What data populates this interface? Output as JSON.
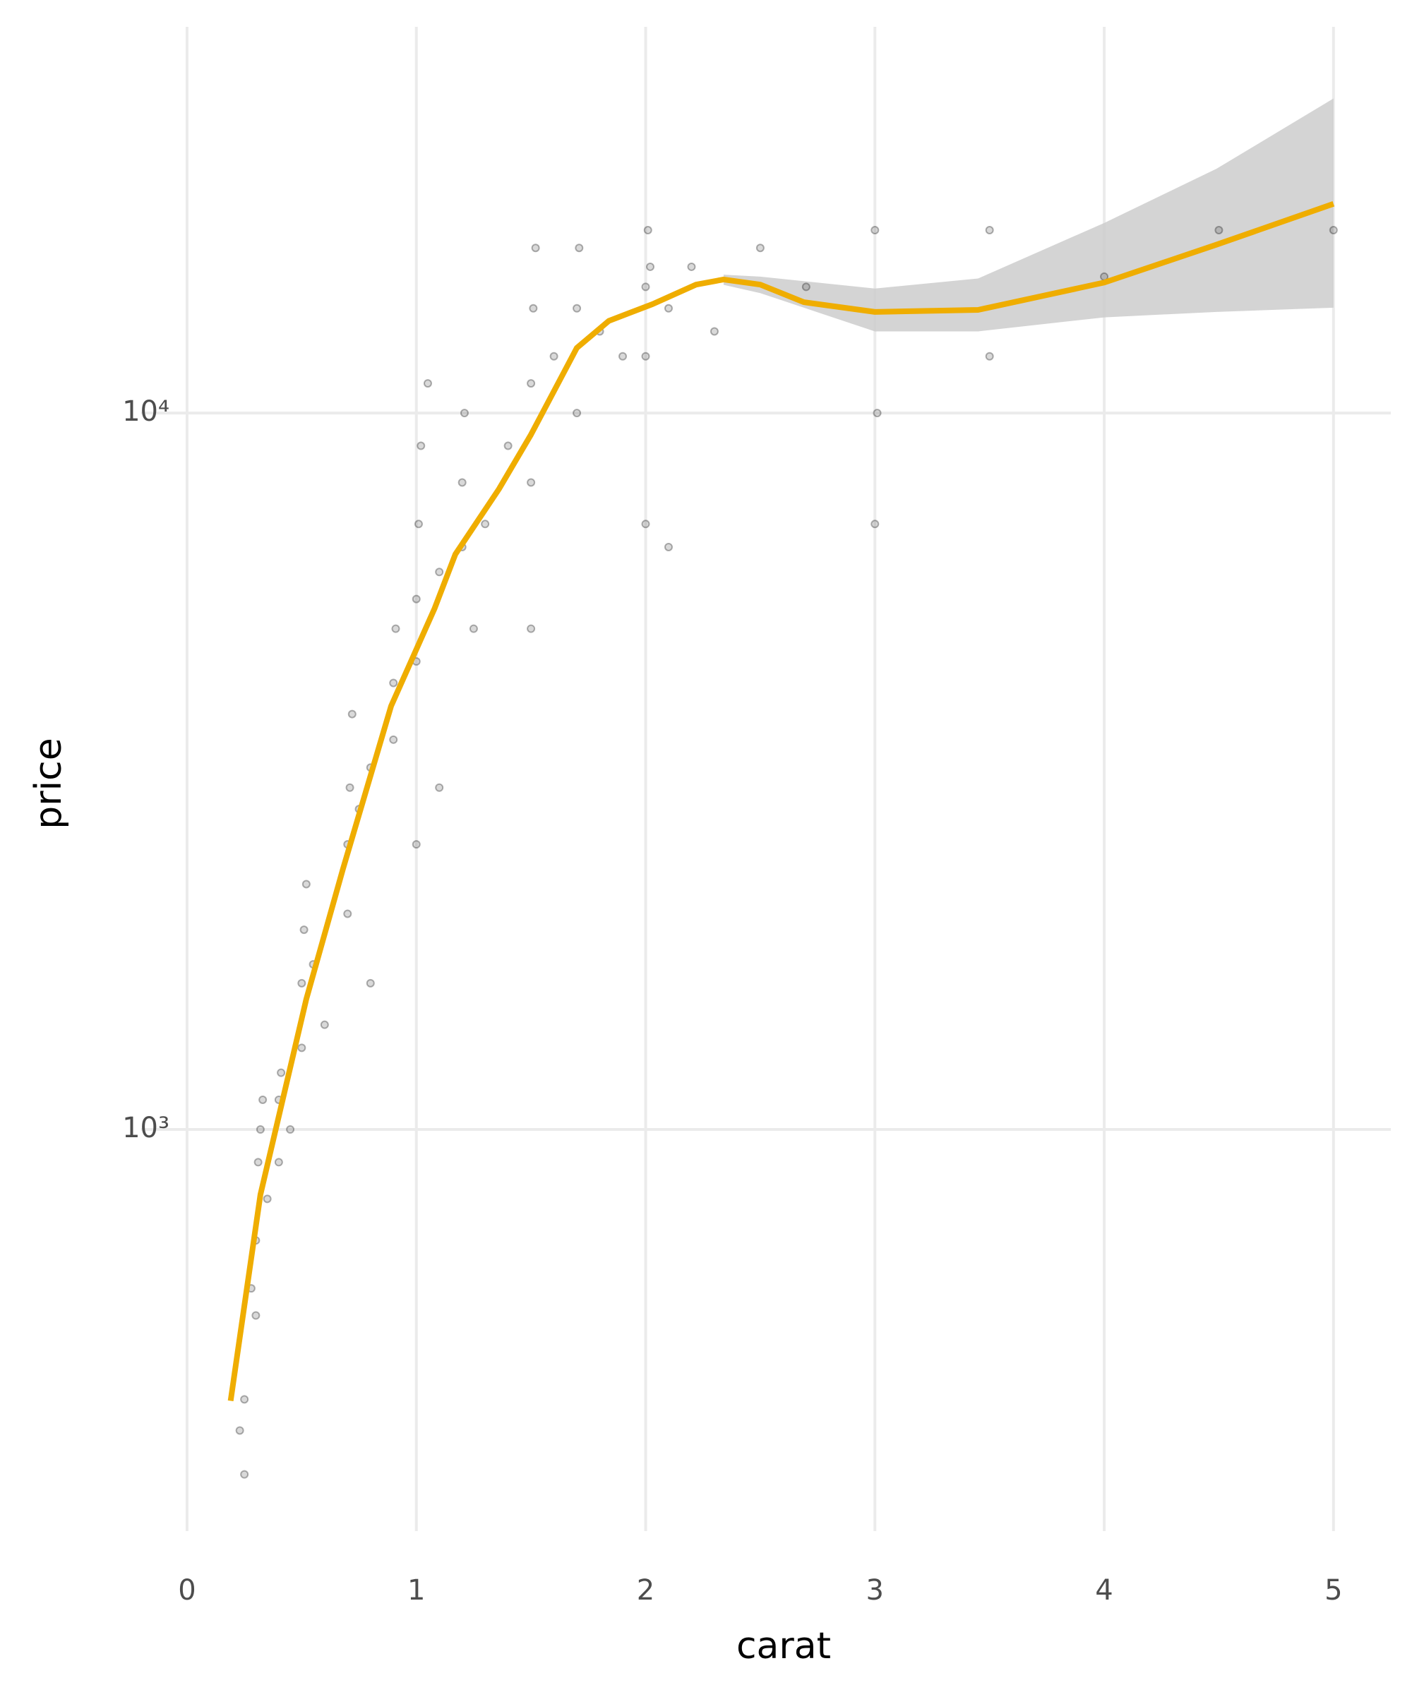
{
  "chart_data": {
    "type": "scatter",
    "x_label": "carat",
    "y_label": "price",
    "log_y": true,
    "grid": true,
    "xlim": [
      -0.2,
      5.25
    ],
    "ylim": [
      275,
      34600
    ],
    "xticks": [
      0,
      1,
      2,
      3,
      4,
      5
    ],
    "yticks": [
      {
        "value": 1000,
        "label": "10³"
      },
      {
        "value": 10000,
        "label": "10⁴"
      }
    ],
    "point_color": "#000000",
    "x": [
      0.23,
      0.25,
      0.3,
      0.3,
      0.31,
      0.32,
      0.35,
      0.4,
      0.4,
      0.41,
      0.5,
      0.5,
      0.51,
      0.52,
      0.55,
      0.6,
      0.7,
      0.7,
      0.71,
      0.72,
      0.75,
      0.8,
      0.9,
      0.9,
      0.91,
      1.0,
      1.0,
      1.01,
      1.02,
      1.05,
      1.1,
      1.2,
      1.2,
      1.21,
      1.25,
      1.3,
      1.4,
      1.5,
      1.5,
      1.51,
      1.52,
      1.5,
      1.6,
      1.7,
      1.7,
      1.71,
      1.8,
      1.9,
      2.0,
      2.0,
      2.01,
      2.02,
      2.1,
      2.2,
      2.3,
      2.5,
      2.7,
      3.0,
      3.01,
      3.0,
      3.5,
      4.0,
      4.5,
      5.0,
      0.25,
      0.28,
      0.33,
      0.45,
      0.8,
      1.0,
      1.1,
      2.0,
      2.1,
      3.5
    ],
    "y": [
      380,
      420,
      550,
      700,
      900,
      1000,
      800,
      1100,
      900,
      1200,
      1300,
      1600,
      1900,
      2200,
      1700,
      1400,
      2000,
      2500,
      3000,
      3800,
      2800,
      3200,
      3500,
      4200,
      5000,
      4500,
      5500,
      7000,
      9000,
      11000,
      6000,
      6500,
      8000,
      10000,
      5000,
      7000,
      9000,
      8000,
      11000,
      14000,
      17000,
      5000,
      12000,
      10000,
      14000,
      17000,
      13000,
      12000,
      12000,
      15000,
      18000,
      16000,
      14000,
      16000,
      13000,
      17000,
      15000,
      18000,
      10000,
      7000,
      18000,
      15500,
      18000,
      18000,
      330,
      600,
      1100,
      1000,
      1600,
      2500,
      3000,
      7000,
      6500,
      12000
    ],
    "smooth": {
      "color": "#EFAD00",
      "x": [
        0.19,
        0.32,
        0.52,
        0.68,
        0.89,
        1.08,
        1.17,
        1.36,
        1.5,
        1.7,
        1.84,
        2.03,
        2.22,
        2.34,
        2.5,
        2.69,
        3.0,
        3.45,
        4.0,
        4.49,
        5.0
      ],
      "y": [
        418,
        811,
        1520,
        2310,
        3900,
        5340,
        6350,
        7830,
        9330,
        12330,
        13450,
        14190,
        15110,
        15360,
        15110,
        14280,
        13840,
        13930,
        15210,
        17180,
        19590
      ]
    },
    "band": {
      "color": "#cccccc",
      "x": [
        2.34,
        2.5,
        3.0,
        3.45,
        4.0,
        4.49,
        5.0
      ],
      "upper": [
        15600,
        15500,
        14920,
        15410,
        18420,
        21930,
        27480
      ],
      "lower": [
        15100,
        14700,
        13000,
        13000,
        13600,
        13840,
        14030
      ]
    }
  }
}
